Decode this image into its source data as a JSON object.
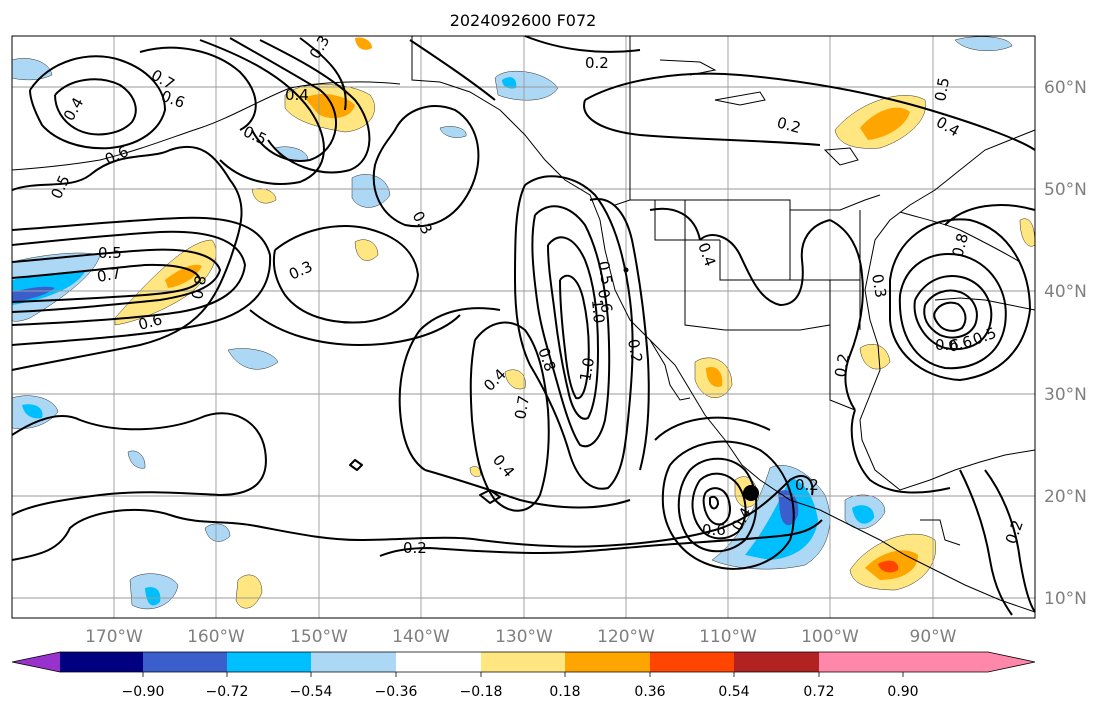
{
  "figure": {
    "title": "2024092600 F072"
  },
  "map": {
    "lon_labels": [
      "170°W",
      "160°W",
      "150°W",
      "140°W",
      "130°W",
      "120°W",
      "110°W",
      "100°W",
      "90°W"
    ],
    "lat_labels": [
      "60°N",
      "50°N",
      "40°N",
      "30°N",
      "20°N",
      "10°N"
    ],
    "contour_labels": [
      "0.2",
      "0.2",
      "0.2",
      "0.2",
      "0.2",
      "0.2",
      "0.3",
      "0.3",
      "0.3",
      "0.3",
      "0.4",
      "0.4",
      "0.4",
      "0.4",
      "0.4",
      "0.5",
      "0.5",
      "0.5",
      "0.5",
      "0.5",
      "0.6",
      "0.6",
      "0.6",
      "0.6",
      "0.6",
      "0.7",
      "0.7",
      "0.8",
      "0.8",
      "1.0",
      "1.0",
      "0.7",
      "0.4",
      "0.2",
      "0.4",
      "0.8",
      "0.6",
      "0.6",
      "0.5"
    ],
    "storm_marker": "filled black circle near 20°N 107°W",
    "colors": {
      "grid": "#9a9a9a",
      "contour": "#000000",
      "coast": "#000000"
    }
  },
  "colorbar": {
    "ticks": [
      "−0.90",
      "−0.72",
      "−0.54",
      "−0.36",
      "−0.18",
      "0.18",
      "0.36",
      "0.54",
      "0.72",
      "0.90"
    ],
    "colors": [
      "#9932cc",
      "#000080",
      "#3a5fcd",
      "#00bfff",
      "#add8f5",
      "#ffffff",
      "#ffe680",
      "#ffa500",
      "#ff4500",
      "#b22222",
      "#ff88aa"
    ]
  }
}
